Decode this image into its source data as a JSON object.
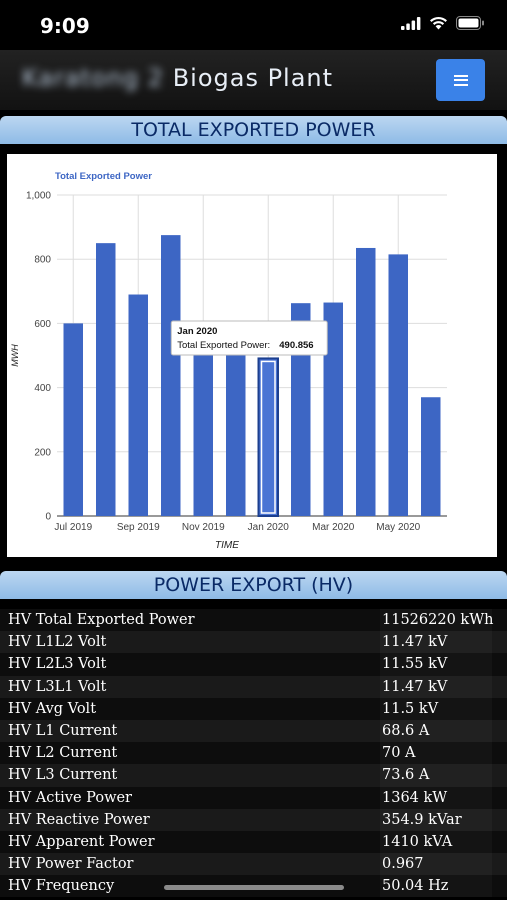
{
  "status_bar": {
    "time": "9:09"
  },
  "header": {
    "title_prefix": "Karatong 2",
    "title": "Biogas Plant",
    "menu_icon": "hamburger-menu-icon"
  },
  "section_total": {
    "title": "TOTAL EXPORTED POWER"
  },
  "chart_data": {
    "type": "bar",
    "title": "Total Exported Power",
    "xlabel": "TIME",
    "ylabel": "MWH",
    "ylim": [
      0,
      1000
    ],
    "yticks": [
      0,
      200,
      400,
      600,
      800,
      1000
    ],
    "ytick_labels": [
      "0",
      "200",
      "400",
      "600",
      "800",
      "1,000"
    ],
    "categories": [
      "Jul 2019",
      "Aug 2019",
      "Sep 2019",
      "Oct 2019",
      "Nov 2019",
      "Dec 2019",
      "Jan 2020",
      "Feb 2020",
      "Mar 2020",
      "Apr 2020",
      "May 2020",
      "Jun 2020"
    ],
    "xtick_labels": [
      "Jul 2019",
      "Sep 2019",
      "Nov 2019",
      "Jan 2020",
      "Mar 2020",
      "May 2020"
    ],
    "series": [
      {
        "name": "Total Exported Power",
        "values": [
          600,
          850,
          690,
          875,
          545,
          525,
          490.856,
          663,
          665,
          835,
          815,
          370
        ]
      }
    ],
    "bar_color": "#3d66c4",
    "grid": true,
    "tooltip": {
      "category": "Jan 2020",
      "label": "Total Exported Power:",
      "value": "490.856"
    }
  },
  "section_hv": {
    "title": "POWER EXPORT (HV)"
  },
  "hv_rows": [
    {
      "label": "HV Total Exported Power",
      "value": "11526220 kWh"
    },
    {
      "label": "HV L1L2 Volt",
      "value": "11.47 kV"
    },
    {
      "label": "HV L2L3 Volt",
      "value": "11.55 kV"
    },
    {
      "label": "HV L3L1 Volt",
      "value": "11.47 kV"
    },
    {
      "label": "HV Avg Volt",
      "value": "11.5 kV"
    },
    {
      "label": "HV L1 Current",
      "value": "68.6 A"
    },
    {
      "label": "HV L2 Current",
      "value": "70 A"
    },
    {
      "label": "HV L3 Current",
      "value": "73.6 A"
    },
    {
      "label": "HV Active Power",
      "value": "1364 kW"
    },
    {
      "label": "HV Reactive Power",
      "value": "354.9 kVar"
    },
    {
      "label": "HV Apparent Power",
      "value": "1410 kVA"
    },
    {
      "label": "HV Power Factor",
      "value": "0.967"
    },
    {
      "label": "HV Frequency",
      "value": "50.04 Hz"
    }
  ]
}
